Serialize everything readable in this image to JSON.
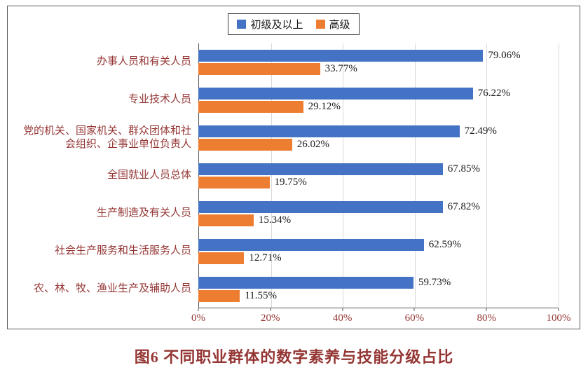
{
  "colors": {
    "primary": "#4472C4",
    "advanced": "#ED7D31",
    "label_text": "#943634",
    "value_text": "#1A1A1A",
    "grid": "#D9D9D9",
    "axis": "#595959",
    "frame_border": "#595959",
    "background": "#FFFFFF"
  },
  "chart_data": {
    "type": "bar",
    "orientation": "horizontal",
    "title": "图6 不同职业群体的数字素养与技能分级占比",
    "categories": [
      "办事人员和有关人员",
      "专业技术人员",
      "党的机关、国家机关、群众团体和社会组织、企事业单位负责人",
      "全国就业人员总体",
      "生产制造及有关人员",
      "社会生产服务和生活服务人员",
      "农、林、牧、渔业生产及辅助人员"
    ],
    "series": [
      {
        "name": "初级及以上",
        "color": "#4472C4",
        "values": [
          79.06,
          76.22,
          72.49,
          67.85,
          67.82,
          62.59,
          59.73
        ],
        "labels": [
          "79.06%",
          "76.22%",
          "72.49%",
          "67.85%",
          "67.82%",
          "62.59%",
          "59.73%"
        ]
      },
      {
        "name": "高级",
        "color": "#ED7D31",
        "values": [
          33.77,
          29.12,
          26.02,
          19.75,
          15.34,
          12.71,
          11.55
        ],
        "labels": [
          "33.77%",
          "29.12%",
          "26.02%",
          "19.75%",
          "15.34%",
          "12.71%",
          "11.55%"
        ]
      }
    ],
    "x_ticks": [
      "0%",
      "20%",
      "40%",
      "60%",
      "80%",
      "100%"
    ],
    "xlim": [
      0,
      100
    ],
    "grid": true,
    "legend_position": "top"
  }
}
